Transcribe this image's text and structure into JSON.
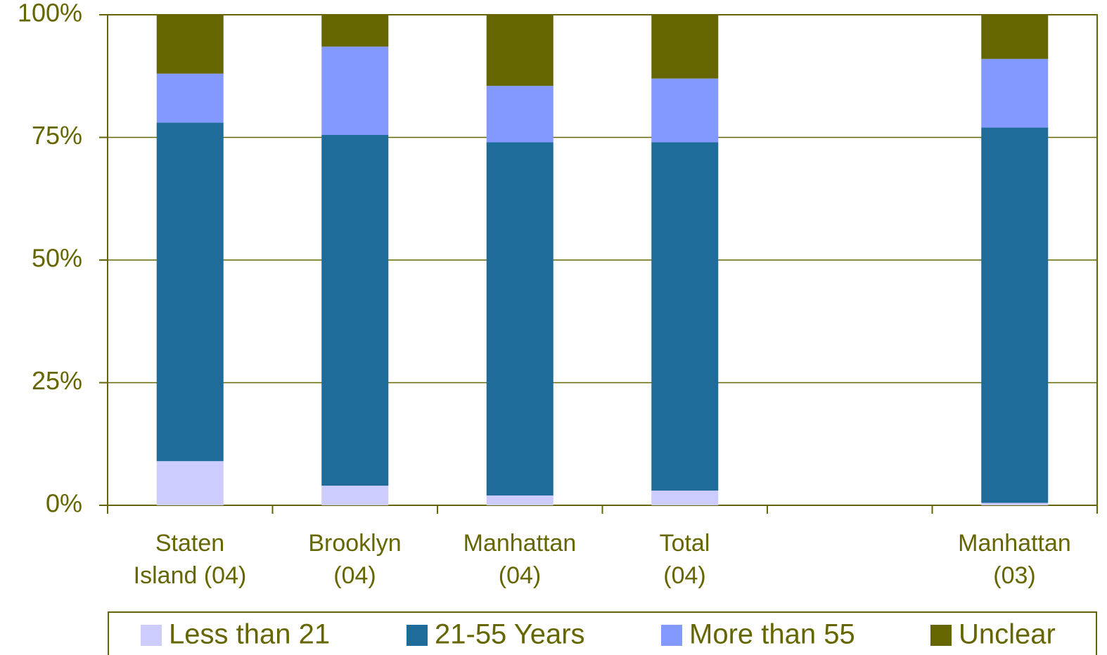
{
  "chart_data": {
    "type": "stacked_bar",
    "categories": [
      "Staten\nIsland  (04)",
      "Brooklyn\n(04)",
      "Manhattan\n(04)",
      "Total\n(04)",
      null,
      "Manhattan\n(03)"
    ],
    "series": [
      {
        "name": "Less than 21",
        "color": "#ccccff",
        "values": [
          9,
          4,
          2,
          3,
          null,
          0.5
        ]
      },
      {
        "name": "21-55 Years",
        "color": "#1f6b99",
        "values": [
          69,
          71.5,
          72,
          71,
          null,
          76.5
        ]
      },
      {
        "name": "More than 55",
        "color": "#8399ff",
        "values": [
          10,
          18,
          11.5,
          13,
          null,
          14
        ]
      },
      {
        "name": "Unclear",
        "color": "#666600",
        "values": [
          12,
          6.5,
          14.5,
          13,
          null,
          9
        ]
      }
    ],
    "ylim": [
      0,
      100
    ],
    "yticks": [
      {
        "value": 0,
        "label": "0%"
      },
      {
        "value": 25,
        "label": "25%"
      },
      {
        "value": 50,
        "label": "50%"
      },
      {
        "value": 75,
        "label": "75%"
      },
      {
        "value": 100,
        "label": "100%"
      }
    ],
    "grid": true,
    "legend": "bottom"
  }
}
